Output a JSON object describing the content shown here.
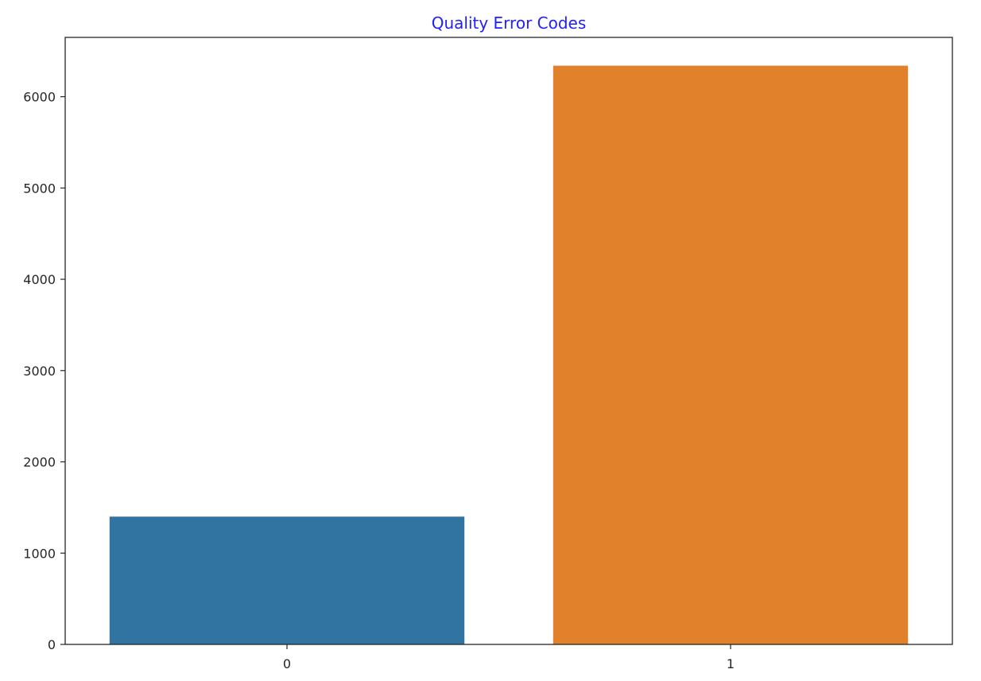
{
  "chart_data": {
    "type": "bar",
    "title": "Quality Error Codes",
    "xlabel": "",
    "ylabel": "",
    "categories": [
      "0",
      "1"
    ],
    "values": [
      1400,
      6340
    ],
    "ylim": [
      0,
      6650
    ],
    "yticks": [
      0,
      1000,
      2000,
      3000,
      4000,
      5000,
      6000
    ],
    "grid": false,
    "legend": "none",
    "colors": {
      "title": "#1f1fff",
      "bars": [
        "#3274a1",
        "#e1812c"
      ],
      "axis": "#262626"
    }
  }
}
